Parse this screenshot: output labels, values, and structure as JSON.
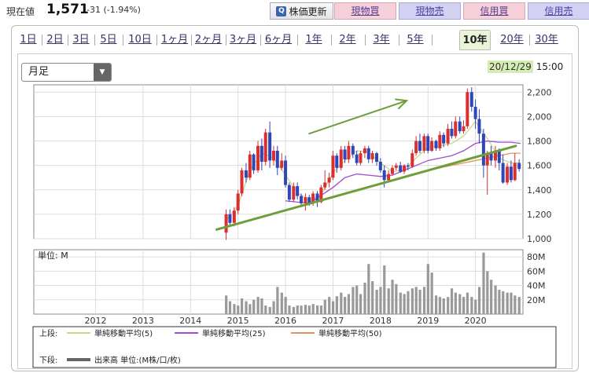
{
  "header": {
    "price_label": "現在値",
    "price_value": "1,571",
    "price_change": "-31 (-1.94%)",
    "update_button": "株価更新",
    "buttons": [
      {
        "label": "現物買",
        "color": "#f5d0d9"
      },
      {
        "label": "現物売",
        "color": "#d4d2f3"
      },
      {
        "label": "信用買",
        "color": "#f5d0d9"
      },
      {
        "label": "信用売",
        "color": "#d4d2f3"
      }
    ]
  },
  "tabs": [
    "1日",
    "2日",
    "3日",
    "5日",
    "10日",
    "1ヶ月",
    "2ヶ月",
    "3ヶ月",
    "6ヶ月",
    "1年",
    "2年",
    "3年",
    "5年",
    "10年",
    "20年",
    "30年"
  ],
  "active_tab": "10年",
  "period_select": "月足",
  "date_label": "20/12/29",
  "time_label": "15:00",
  "colors": {
    "up": "#d83030",
    "down": "#2f46b8",
    "ma5": "#c8d88a",
    "ma25": "#a04ccf",
    "ma50": "#e09560",
    "volume": "#999999",
    "trend": "#6e9e3a"
  },
  "chart_data": [
    {
      "type": "candlestick",
      "yticks": [
        "2,200",
        "2,000",
        "1,800",
        "1,600",
        "1,400",
        "1,200",
        "1,000"
      ],
      "ylim": [
        1000,
        2260
      ],
      "xlim": [
        "2011-01",
        "2021-04"
      ],
      "xticks": [
        "2012",
        "2013",
        "2014",
        "2015",
        "2016",
        "2017",
        "2018",
        "2019",
        "2020"
      ],
      "series": [
        {
          "name": "単純移動平均(5)",
          "values": [
            [
              2014.75,
              1150
            ],
            [
              2015.0,
              1270
            ],
            [
              2015.25,
              1560
            ],
            [
              2015.5,
              1700
            ],
            [
              2015.75,
              1660
            ],
            [
              2016.0,
              1520
            ],
            [
              2016.25,
              1380
            ],
            [
              2016.5,
              1310
            ],
            [
              2016.75,
              1360
            ],
            [
              2017.0,
              1540
            ],
            [
              2017.25,
              1640
            ],
            [
              2017.5,
              1720
            ],
            [
              2017.75,
              1710
            ],
            [
              2018.0,
              1620
            ],
            [
              2018.25,
              1550
            ],
            [
              2018.5,
              1560
            ],
            [
              2018.75,
              1660
            ],
            [
              2019.0,
              1750
            ],
            [
              2019.25,
              1760
            ],
            [
              2019.5,
              1780
            ],
            [
              2019.75,
              1840
            ],
            [
              2020.0,
              1960
            ],
            [
              2020.25,
              1820
            ],
            [
              2020.5,
              1660
            ],
            [
              2020.75,
              1620
            ],
            [
              2020.95,
              1620
            ]
          ]
        },
        {
          "name": "単純移動平均(25)",
          "values": [
            [
              2016.0,
              1310
            ],
            [
              2016.5,
              1290
            ],
            [
              2017.0,
              1420
            ],
            [
              2017.25,
              1500
            ],
            [
              2017.5,
              1530
            ],
            [
              2017.75,
              1520
            ],
            [
              2018.0,
              1510
            ],
            [
              2018.25,
              1520
            ],
            [
              2018.5,
              1560
            ],
            [
              2018.75,
              1600
            ],
            [
              2019.0,
              1640
            ],
            [
              2019.25,
              1660
            ],
            [
              2019.5,
              1680
            ],
            [
              2019.75,
              1720
            ],
            [
              2020.0,
              1780
            ],
            [
              2020.25,
              1800
            ],
            [
              2020.5,
              1790
            ],
            [
              2020.75,
              1790
            ],
            [
              2020.95,
              1780
            ]
          ]
        },
        {
          "name": "単純移動平均(50)",
          "values": [
            [
              2019.0,
              1560
            ],
            [
              2019.5,
              1600
            ],
            [
              2020.0,
              1640
            ],
            [
              2020.25,
              1660
            ],
            [
              2020.5,
              1680
            ],
            [
              2020.75,
              1700
            ],
            [
              2020.95,
              1700
            ]
          ]
        }
      ],
      "candles": [
        [
          2014.75,
          1050,
          1200,
          990,
          1240
        ],
        [
          2014.83,
          1200,
          1130,
          1100,
          1240
        ],
        [
          2014.92,
          1130,
          1230,
          1100,
          1260
        ],
        [
          2015.0,
          1230,
          1370,
          1200,
          1400
        ],
        [
          2015.08,
          1370,
          1560,
          1350,
          1580
        ],
        [
          2015.17,
          1560,
          1500,
          1460,
          1620
        ],
        [
          2015.25,
          1500,
          1690,
          1480,
          1720
        ],
        [
          2015.33,
          1690,
          1560,
          1530,
          1700
        ],
        [
          2015.42,
          1560,
          1760,
          1540,
          1800
        ],
        [
          2015.5,
          1760,
          1630,
          1560,
          1820
        ],
        [
          2015.58,
          1630,
          1870,
          1600,
          1900
        ],
        [
          2015.67,
          1870,
          1640,
          1580,
          1960
        ],
        [
          2015.75,
          1640,
          1720,
          1600,
          1760
        ],
        [
          2015.83,
          1720,
          1580,
          1520,
          1760
        ],
        [
          2015.92,
          1580,
          1640,
          1560,
          1700
        ],
        [
          2016.0,
          1640,
          1440,
          1420,
          1680
        ],
        [
          2016.08,
          1440,
          1320,
          1300,
          1460
        ],
        [
          2016.17,
          1320,
          1430,
          1300,
          1460
        ],
        [
          2016.25,
          1430,
          1350,
          1320,
          1460
        ],
        [
          2016.33,
          1350,
          1290,
          1260,
          1370
        ],
        [
          2016.42,
          1290,
          1340,
          1230,
          1370
        ],
        [
          2016.5,
          1340,
          1290,
          1270,
          1360
        ],
        [
          2016.58,
          1290,
          1370,
          1270,
          1390
        ],
        [
          2016.67,
          1370,
          1300,
          1260,
          1390
        ],
        [
          2016.75,
          1300,
          1420,
          1290,
          1440
        ],
        [
          2016.83,
          1420,
          1460,
          1400,
          1560
        ],
        [
          2016.92,
          1460,
          1500,
          1420,
          1540
        ],
        [
          2017.0,
          1500,
          1680,
          1480,
          1720
        ],
        [
          2017.08,
          1680,
          1580,
          1540,
          1700
        ],
        [
          2017.17,
          1580,
          1730,
          1560,
          1760
        ],
        [
          2017.25,
          1730,
          1650,
          1620,
          1760
        ],
        [
          2017.33,
          1650,
          1760,
          1620,
          1800
        ],
        [
          2017.42,
          1760,
          1690,
          1660,
          1780
        ],
        [
          2017.5,
          1690,
          1620,
          1600,
          1720
        ],
        [
          2017.58,
          1620,
          1700,
          1600,
          1720
        ],
        [
          2017.67,
          1700,
          1740,
          1660,
          1760
        ],
        [
          2017.75,
          1740,
          1650,
          1620,
          1760
        ],
        [
          2017.83,
          1650,
          1700,
          1620,
          1720
        ],
        [
          2017.92,
          1700,
          1630,
          1600,
          1710
        ],
        [
          2018.0,
          1630,
          1560,
          1540,
          1660
        ],
        [
          2018.08,
          1560,
          1480,
          1420,
          1600
        ],
        [
          2018.17,
          1480,
          1530,
          1460,
          1560
        ],
        [
          2018.25,
          1530,
          1580,
          1520,
          1600
        ],
        [
          2018.33,
          1580,
          1600,
          1560,
          1620
        ],
        [
          2018.42,
          1600,
          1550,
          1540,
          1630
        ],
        [
          2018.5,
          1550,
          1600,
          1530,
          1610
        ],
        [
          2018.58,
          1600,
          1590,
          1560,
          1620
        ],
        [
          2018.67,
          1590,
          1700,
          1580,
          1730
        ],
        [
          2018.75,
          1700,
          1800,
          1680,
          1840
        ],
        [
          2018.83,
          1800,
          1720,
          1700,
          1860
        ],
        [
          2018.92,
          1720,
          1840,
          1700,
          1860
        ],
        [
          2019.0,
          1840,
          1720,
          1700,
          1860
        ],
        [
          2019.08,
          1720,
          1800,
          1710,
          1830
        ],
        [
          2019.17,
          1800,
          1740,
          1720,
          1810
        ],
        [
          2019.25,
          1740,
          1850,
          1720,
          1880
        ],
        [
          2019.33,
          1850,
          1780,
          1750,
          1870
        ],
        [
          2019.42,
          1780,
          1900,
          1760,
          1940
        ],
        [
          2019.5,
          1900,
          1840,
          1820,
          1960
        ],
        [
          2019.58,
          1840,
          1960,
          1820,
          2000
        ],
        [
          2019.67,
          1960,
          1880,
          1860,
          2000
        ],
        [
          2019.75,
          1880,
          1920,
          1860,
          1970
        ],
        [
          2019.83,
          1920,
          2200,
          1900,
          2230
        ],
        [
          2019.92,
          2200,
          2080,
          2040,
          2240
        ],
        [
          2020.0,
          2080,
          1980,
          1900,
          2140
        ],
        [
          2020.08,
          1980,
          1860,
          1780,
          2060
        ],
        [
          2020.17,
          1860,
          1600,
          1500,
          1900
        ],
        [
          2020.25,
          1600,
          1700,
          1360,
          1720
        ],
        [
          2020.33,
          1700,
          1640,
          1600,
          1760
        ],
        [
          2020.42,
          1640,
          1720,
          1580,
          1760
        ],
        [
          2020.5,
          1720,
          1620,
          1560,
          1740
        ],
        [
          2020.58,
          1620,
          1460,
          1450,
          1690
        ],
        [
          2020.67,
          1460,
          1590,
          1440,
          1620
        ],
        [
          2020.75,
          1590,
          1480,
          1460,
          1640
        ],
        [
          2020.83,
          1480,
          1620,
          1470,
          1700
        ],
        [
          2020.92,
          1620,
          1571,
          1550,
          1650
        ]
      ]
    },
    {
      "type": "bar",
      "label": "単位: M",
      "yticks": [
        "80M",
        "60M",
        "40M",
        "20M"
      ],
      "ylim": [
        0,
        90
      ],
      "values": [
        [
          2014.75,
          26
        ],
        [
          2014.83,
          18
        ],
        [
          2014.92,
          14
        ],
        [
          2015.0,
          12
        ],
        [
          2015.08,
          22
        ],
        [
          2015.17,
          18
        ],
        [
          2015.25,
          14
        ],
        [
          2015.33,
          20
        ],
        [
          2015.42,
          24
        ],
        [
          2015.5,
          22
        ],
        [
          2015.58,
          12
        ],
        [
          2015.67,
          10
        ],
        [
          2015.75,
          18
        ],
        [
          2015.83,
          38
        ],
        [
          2015.92,
          30
        ],
        [
          2016.0,
          24
        ],
        [
          2016.08,
          12
        ],
        [
          2016.17,
          10
        ],
        [
          2016.25,
          12
        ],
        [
          2016.33,
          12
        ],
        [
          2016.42,
          13
        ],
        [
          2016.5,
          12
        ],
        [
          2016.58,
          14
        ],
        [
          2016.67,
          12
        ],
        [
          2016.75,
          12
        ],
        [
          2016.83,
          20
        ],
        [
          2016.92,
          24
        ],
        [
          2017.0,
          18
        ],
        [
          2017.08,
          25
        ],
        [
          2017.17,
          30
        ],
        [
          2017.25,
          24
        ],
        [
          2017.33,
          28
        ],
        [
          2017.42,
          38
        ],
        [
          2017.5,
          40
        ],
        [
          2017.58,
          28
        ],
        [
          2017.67,
          44
        ],
        [
          2017.75,
          70
        ],
        [
          2017.83,
          46
        ],
        [
          2017.92,
          34
        ],
        [
          2018.0,
          38
        ],
        [
          2018.08,
          68
        ],
        [
          2018.17,
          36
        ],
        [
          2018.25,
          48
        ],
        [
          2018.33,
          42
        ],
        [
          2018.42,
          30
        ],
        [
          2018.5,
          28
        ],
        [
          2018.58,
          32
        ],
        [
          2018.67,
          36
        ],
        [
          2018.75,
          38
        ],
        [
          2018.83,
          34
        ],
        [
          2018.92,
          38
        ],
        [
          2019.0,
          70
        ],
        [
          2019.08,
          58
        ],
        [
          2019.17,
          26
        ],
        [
          2019.25,
          24
        ],
        [
          2019.33,
          22
        ],
        [
          2019.42,
          24
        ],
        [
          2019.5,
          36
        ],
        [
          2019.58,
          30
        ],
        [
          2019.67,
          28
        ],
        [
          2019.75,
          24
        ],
        [
          2019.83,
          30
        ],
        [
          2019.92,
          24
        ],
        [
          2020.0,
          20
        ],
        [
          2020.08,
          38
        ],
        [
          2020.17,
          86
        ],
        [
          2020.25,
          60
        ],
        [
          2020.33,
          48
        ],
        [
          2020.42,
          40
        ],
        [
          2020.5,
          34
        ],
        [
          2020.58,
          32
        ],
        [
          2020.67,
          30
        ],
        [
          2020.75,
          30
        ],
        [
          2020.83,
          26
        ],
        [
          2020.92,
          24
        ]
      ]
    }
  ],
  "annotations": {
    "trend_line": [
      [
        2014.55,
        1075
      ],
      [
        2020.85,
        1760
      ]
    ],
    "arrow": [
      [
        2016.5,
        1860
      ],
      [
        2018.55,
        2130
      ]
    ]
  },
  "legend": {
    "upper_label": "上段:",
    "upper_items": [
      "単純移動平均(5)",
      "単純移動平均(25)",
      "単純移動平均(50)"
    ],
    "lower_label": "下段:",
    "lower_item": "出来高 単位:(M株/口/枚)"
  }
}
